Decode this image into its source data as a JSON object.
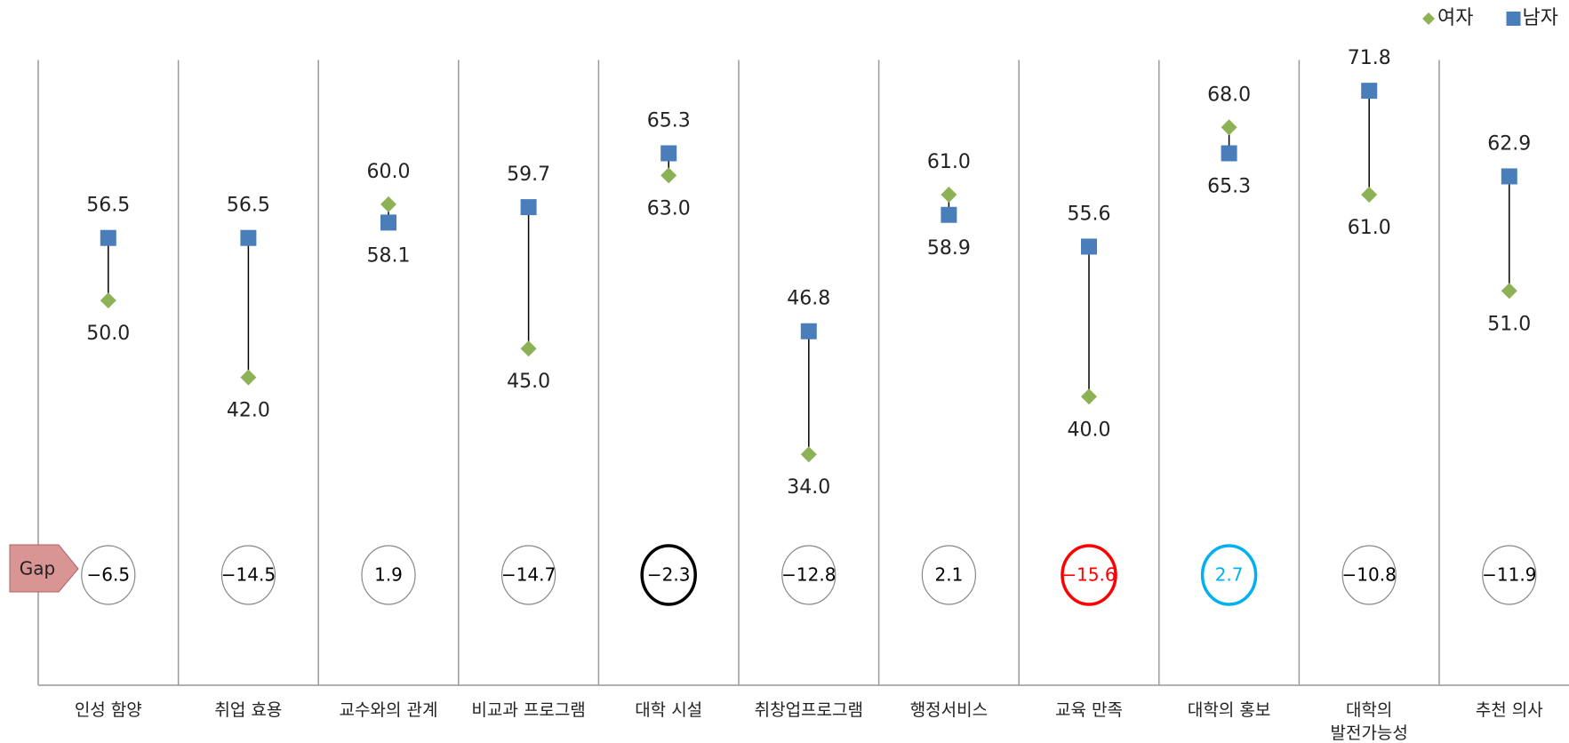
{
  "chart_data": {
    "type": "dumbbell",
    "categories": [
      "인성 함양",
      "취업 효용",
      "교수와의 관계",
      "비교과 프로그램",
      "대학 시설",
      "취창업프로그램",
      "행정서비스",
      "교육 만족",
      "대학의 홍보",
      "대학의\n발전가능성",
      "추천 의사"
    ],
    "series": [
      {
        "name": "여자",
        "color": "#8db255",
        "marker": "diamond",
        "values": [
          50,
          42,
          60,
          45,
          63,
          34,
          61,
          40,
          68,
          61,
          51
        ],
        "value_labels": [
          "50.0",
          "42.0",
          "60.0",
          "45.0",
          "63.0",
          "34.0",
          "61.0",
          "40.0",
          "68.0",
          "61.0",
          "51.0"
        ]
      },
      {
        "name": "남자",
        "color": "#4a7ebb",
        "marker": "square",
        "values": [
          56.5,
          56.5,
          58.1,
          59.7,
          65.3,
          46.8,
          58.9,
          55.6,
          65.3,
          71.8,
          62.9
        ],
        "value_labels": [
          "56.5",
          "56.5",
          "58.1",
          "59.7",
          "65.3",
          "46.8",
          "58.9",
          "55.6",
          "65.3",
          "71.8",
          "62.9"
        ]
      }
    ],
    "gap": {
      "name": "Gap",
      "color": "#d99594",
      "values": [
        -6.5,
        -14.5,
        1.9,
        -14.7,
        -2.3,
        -12.8,
        2.1,
        -15.6,
        2.7,
        -10.8,
        -11.9
      ],
      "value_labels": [
        "−6.5",
        "−14.5",
        "1.9",
        "−14.7",
        "−2.3",
        "−12.8",
        "2.1",
        "−15.6",
        "2.7",
        "−10.8",
        "−11.9"
      ],
      "circle_colors": [
        "#888888",
        "#888888",
        "#888888",
        "#888888",
        "#000000",
        "#888888",
        "#888888",
        "#ff0000",
        "#00b0f0",
        "#888888",
        "#888888"
      ],
      "text_colors": [
        "#000000",
        "#000000",
        "#000000",
        "#000000",
        "#000000",
        "#000000",
        "#000000",
        "#ff0000",
        "#00b0f0",
        "#000000",
        "#000000"
      ]
    },
    "ylim": [
      10,
      75
    ],
    "legend": "top-right"
  }
}
